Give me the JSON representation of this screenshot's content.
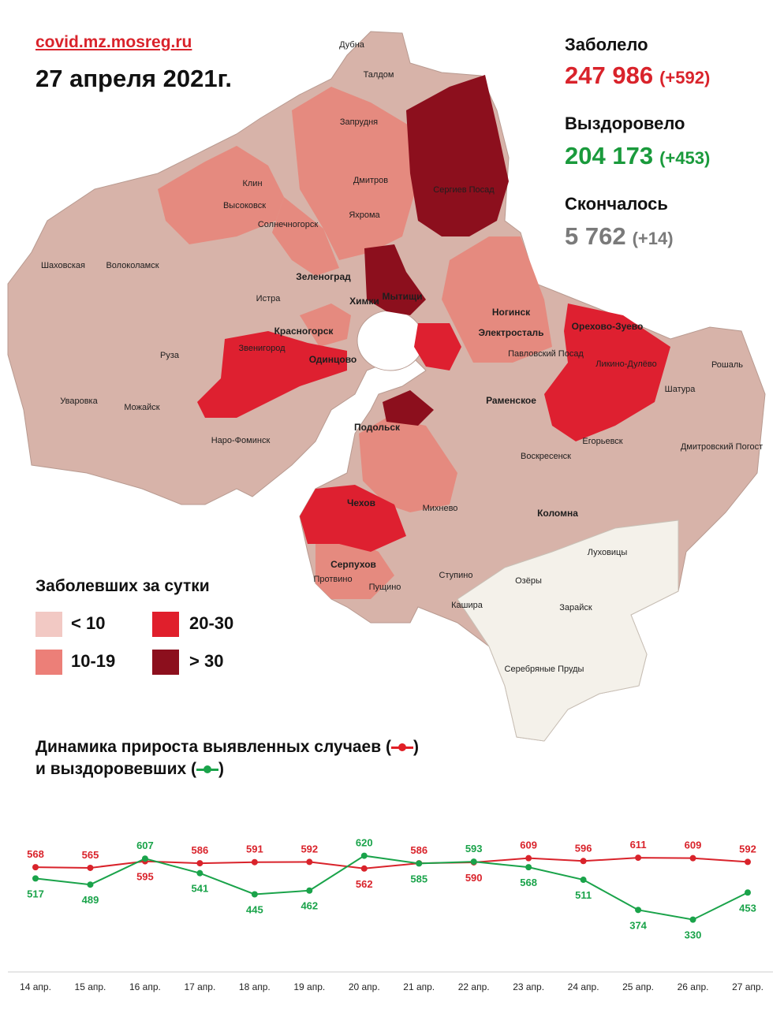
{
  "header": {
    "site": "covid.mz.mosreg.ru",
    "date": "27 апреля 2021г."
  },
  "stats": {
    "infected": {
      "label": "Заболело",
      "value": "247 986",
      "delta": "(+592)",
      "color": "#d9232b"
    },
    "recovered": {
      "label": "Выздоровело",
      "value": "204 173",
      "delta": "(+453)",
      "color": "#1a9a3c"
    },
    "died": {
      "label": "Скончалось",
      "value": "5 762",
      "delta": "(+14)",
      "color": "#7a7a7a"
    }
  },
  "map": {
    "cities": [
      "Дубна",
      "Талдом",
      "Запрудня",
      "Клин",
      "Высоковск",
      "Дмитров",
      "Яхрома",
      "Сергиев Посад",
      "Солнечногорск",
      "Шаховская",
      "Волоколамск",
      "Зеленоград",
      "Истра",
      "Химки",
      "Мытищи",
      "Красногорск",
      "Звенигород",
      "Одинцово",
      "Руза",
      "Уваровка",
      "Можайск",
      "Наро-Фоминск",
      "Ногинск",
      "Электросталь",
      "Павловский Посад",
      "Орехово-Зуево",
      "Ликино-Дулёво",
      "Рошаль",
      "Шатура",
      "Раменское",
      "Подольск",
      "Егорьевск",
      "Дмитровский Погост",
      "Воскресенск",
      "Чехов",
      "Михнево",
      "Коломна",
      "Луховицы",
      "Серпухов",
      "Протвино",
      "Пущино",
      "Ступино",
      "Озёры",
      "Зарайск",
      "Кашира",
      "Серебряные Пруды"
    ]
  },
  "legend": {
    "title": "Заболевших за сутки",
    "items": [
      {
        "label": "< 10",
        "color": "#f2c9c4"
      },
      {
        "label": "10-19",
        "color": "#ec7f78"
      },
      {
        "label": "20-30",
        "color": "#e01f2c"
      },
      {
        "label": "> 30",
        "color": "#8c0f1d"
      }
    ]
  },
  "dynamics": {
    "title_line1": "Динамика прироста выявленных случаев (",
    "title_line1_end": ")",
    "title_line2": "и выздоровевших (",
    "title_line2_end": ")"
  },
  "chart_data": {
    "type": "line",
    "categories": [
      "14 апр.",
      "15 апр.",
      "16 апр.",
      "17 апр.",
      "18 апр.",
      "19 апр.",
      "20 апр.",
      "21 апр.",
      "22 апр.",
      "23 апр.",
      "24 апр.",
      "25 апр.",
      "26 апр.",
      "27 апр."
    ],
    "series": [
      {
        "values": [
          568,
          565,
          595,
          586,
          591,
          592,
          562,
          586,
          590,
          609,
          596,
          611,
          609,
          592
        ],
        "color": "#d9232b"
      },
      {
        "values": [
          517,
          489,
          607,
          541,
          445,
          462,
          620,
          585,
          593,
          568,
          511,
          374,
          330,
          453
        ],
        "color": "#1aa34a"
      }
    ],
    "grid": false
  }
}
